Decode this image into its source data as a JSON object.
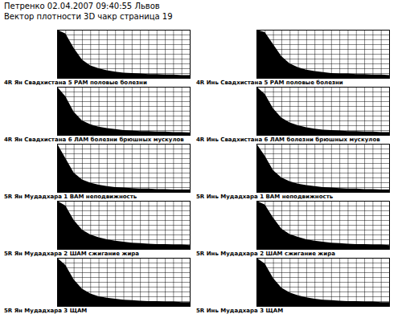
{
  "page": {
    "title": "Петренко 02.04.2007 09:40:55 Львов",
    "subtitle": "Вектор плотности 3D чакр страница 19"
  },
  "chart_data": [
    {
      "type": "area",
      "title": "4R Ян Свадхистана 5 РАМ половые болезни",
      "x": [
        0,
        10,
        20,
        30,
        40,
        50,
        60,
        70,
        80,
        90,
        100,
        110,
        120,
        130,
        140,
        150,
        160
      ],
      "values": [
        100,
        92,
        62,
        38,
        26,
        20,
        16,
        13,
        11,
        10,
        9,
        8,
        8,
        7,
        7,
        6,
        6
      ],
      "xlim": [
        0,
        160
      ],
      "ylim": [
        0,
        100
      ],
      "xticks": [
        0,
        10,
        20,
        30,
        40,
        50,
        60,
        70,
        80,
        90,
        100,
        110,
        120,
        130,
        140,
        150,
        160
      ],
      "yticks": [
        0,
        10,
        20,
        30,
        40,
        50,
        60,
        70,
        80,
        90,
        100
      ],
      "grid": true,
      "tick_labels": false,
      "color": "#000000"
    },
    {
      "type": "area",
      "title": "4R Инь Свадхистана 5 РАМ половые болезни",
      "x": [
        0,
        10,
        20,
        30,
        40,
        50,
        60,
        70,
        80,
        90,
        100,
        110,
        120,
        130,
        140,
        150,
        160
      ],
      "values": [
        100,
        95,
        70,
        45,
        30,
        22,
        17,
        14,
        12,
        10,
        9,
        9,
        8,
        8,
        7,
        7,
        6
      ],
      "xlim": [
        0,
        160
      ],
      "ylim": [
        0,
        100
      ],
      "xticks": [
        0,
        10,
        20,
        30,
        40,
        50,
        60,
        70,
        80,
        90,
        100,
        110,
        120,
        130,
        140,
        150,
        160
      ],
      "yticks": [
        0,
        10,
        20,
        30,
        40,
        50,
        60,
        70,
        80,
        90,
        100
      ],
      "grid": true,
      "tick_labels": false,
      "color": "#000000"
    },
    {
      "type": "area",
      "title": "4R Ян Свадхистана 6 ЛАМ болезни брюшных мускулов",
      "x": [
        0,
        10,
        20,
        30,
        40,
        50,
        60,
        70,
        80,
        90,
        100,
        110,
        120,
        130,
        140,
        150,
        160
      ],
      "values": [
        100,
        80,
        48,
        30,
        22,
        17,
        14,
        12,
        10,
        9,
        8,
        8,
        7,
        7,
        6,
        6,
        5
      ],
      "xlim": [
        0,
        160
      ],
      "ylim": [
        0,
        100
      ],
      "xticks": [
        0,
        10,
        20,
        30,
        40,
        50,
        60,
        70,
        80,
        90,
        100,
        110,
        120,
        130,
        140,
        150,
        160
      ],
      "yticks": [
        0,
        10,
        20,
        30,
        40,
        50,
        60,
        70,
        80,
        90,
        100
      ],
      "grid": true,
      "tick_labels": false,
      "color": "#000000"
    },
    {
      "type": "area",
      "title": "4R Инь Свадхистана 6 ЛАМ болезни брюшных мускулов",
      "x": [
        0,
        10,
        20,
        30,
        40,
        50,
        60,
        70,
        80,
        90,
        100,
        110,
        120,
        130,
        140,
        150,
        160
      ],
      "values": [
        100,
        85,
        55,
        36,
        26,
        20,
        16,
        13,
        11,
        10,
        9,
        8,
        8,
        7,
        7,
        6,
        6
      ],
      "xlim": [
        0,
        160
      ],
      "ylim": [
        0,
        100
      ],
      "xticks": [
        0,
        10,
        20,
        30,
        40,
        50,
        60,
        70,
        80,
        90,
        100,
        110,
        120,
        130,
        140,
        150,
        160
      ],
      "yticks": [
        0,
        10,
        20,
        30,
        40,
        50,
        60,
        70,
        80,
        90,
        100
      ],
      "grid": true,
      "tick_labels": false,
      "color": "#000000"
    },
    {
      "type": "area",
      "title": "5R Ян Мудадхара 1 ВАМ неподвижность",
      "x": [
        0,
        10,
        20,
        30,
        40,
        50,
        60,
        70,
        80,
        90,
        100,
        110,
        120,
        130,
        140,
        150,
        160
      ],
      "values": [
        100,
        70,
        40,
        26,
        19,
        15,
        12,
        10,
        9,
        8,
        7,
        7,
        6,
        6,
        5,
        5,
        5
      ],
      "xlim": [
        0,
        160
      ],
      "ylim": [
        0,
        100
      ],
      "xticks": [
        0,
        10,
        20,
        30,
        40,
        50,
        60,
        70,
        80,
        90,
        100,
        110,
        120,
        130,
        140,
        150,
        160
      ],
      "yticks": [
        0,
        10,
        20,
        30,
        40,
        50,
        60,
        70,
        80,
        90,
        100
      ],
      "grid": true,
      "tick_labels": false,
      "color": "#000000"
    },
    {
      "type": "area",
      "title": "5R Инь Мудадхара 1 ВАМ неподвижность",
      "x": [
        0,
        10,
        20,
        30,
        40,
        50,
        60,
        70,
        80,
        90,
        100,
        110,
        120,
        130,
        140,
        150,
        160
      ],
      "values": [
        100,
        75,
        45,
        30,
        22,
        17,
        14,
        12,
        10,
        9,
        8,
        7,
        7,
        6,
        6,
        5,
        5
      ],
      "xlim": [
        0,
        160
      ],
      "ylim": [
        0,
        100
      ],
      "xticks": [
        0,
        10,
        20,
        30,
        40,
        50,
        60,
        70,
        80,
        90,
        100,
        110,
        120,
        130,
        140,
        150,
        160
      ],
      "yticks": [
        0,
        10,
        20,
        30,
        40,
        50,
        60,
        70,
        80,
        90,
        100
      ],
      "grid": true,
      "tick_labels": false,
      "color": "#000000"
    },
    {
      "type": "area",
      "title": "5R Ян Мудадхара 2 ШАМ сжигание жира",
      "x": [
        0,
        10,
        20,
        30,
        40,
        50,
        60,
        70,
        80,
        90,
        100,
        110,
        120,
        130,
        140,
        150,
        160
      ],
      "values": [
        100,
        90,
        60,
        40,
        30,
        24,
        20,
        17,
        15,
        13,
        12,
        11,
        10,
        10,
        9,
        9,
        8
      ],
      "xlim": [
        0,
        160
      ],
      "ylim": [
        0,
        100
      ],
      "xticks": [
        0,
        10,
        20,
        30,
        40,
        50,
        60,
        70,
        80,
        90,
        100,
        110,
        120,
        130,
        140,
        150,
        160
      ],
      "yticks": [
        0,
        10,
        20,
        30,
        40,
        50,
        60,
        70,
        80,
        90,
        100
      ],
      "grid": true,
      "tick_labels": false,
      "color": "#000000"
    },
    {
      "type": "area",
      "title": "5R Инь Мудадхара 2 ШАМ сжигание жира",
      "x": [
        0,
        10,
        20,
        30,
        40,
        50,
        60,
        70,
        80,
        90,
        100,
        110,
        120,
        130,
        140,
        150,
        160
      ],
      "values": [
        100,
        92,
        65,
        42,
        31,
        25,
        20,
        17,
        15,
        13,
        12,
        11,
        10,
        10,
        9,
        9,
        8
      ],
      "xlim": [
        0,
        160
      ],
      "ylim": [
        0,
        100
      ],
      "xticks": [
        0,
        10,
        20,
        30,
        40,
        50,
        60,
        70,
        80,
        90,
        100,
        110,
        120,
        130,
        140,
        150,
        160
      ],
      "yticks": [
        0,
        10,
        20,
        30,
        40,
        50,
        60,
        70,
        80,
        90,
        100
      ],
      "grid": true,
      "tick_labels": false,
      "color": "#000000"
    },
    {
      "type": "area",
      "title": "5R Ян Мудадхара 3 ЩАМ",
      "x": [
        0,
        10,
        20,
        30,
        40,
        50,
        60,
        70,
        80,
        90,
        100,
        110,
        120,
        130,
        140,
        150,
        160
      ],
      "values": [
        100,
        85,
        55,
        36,
        26,
        20,
        17,
        15,
        13,
        12,
        11,
        10,
        10,
        9,
        9,
        8,
        8
      ],
      "xlim": [
        0,
        160
      ],
      "ylim": [
        0,
        100
      ],
      "xticks": [
        0,
        10,
        20,
        30,
        40,
        50,
        60,
        70,
        80,
        90,
        100,
        110,
        120,
        130,
        140,
        150,
        160
      ],
      "yticks": [
        0,
        10,
        20,
        30,
        40,
        50,
        60,
        70,
        80,
        90,
        100
      ],
      "grid": true,
      "tick_labels": false,
      "color": "#000000"
    },
    {
      "type": "area",
      "title": "5R Инь Мудадхара 3 ЩАМ",
      "x": [
        0,
        10,
        20,
        30,
        40,
        50,
        60,
        70,
        80,
        90,
        100,
        110,
        120,
        130,
        140,
        150,
        160
      ],
      "values": [
        100,
        88,
        58,
        38,
        28,
        22,
        18,
        15,
        13,
        12,
        11,
        10,
        10,
        9,
        9,
        8,
        8
      ],
      "xlim": [
        0,
        160
      ],
      "ylim": [
        0,
        100
      ],
      "xticks": [
        0,
        10,
        20,
        30,
        40,
        50,
        60,
        70,
        80,
        90,
        100,
        110,
        120,
        130,
        140,
        150,
        160
      ],
      "yticks": [
        0,
        10,
        20,
        30,
        40,
        50,
        60,
        70,
        80,
        90,
        100
      ],
      "grid": true,
      "tick_labels": false,
      "color": "#000000"
    }
  ]
}
